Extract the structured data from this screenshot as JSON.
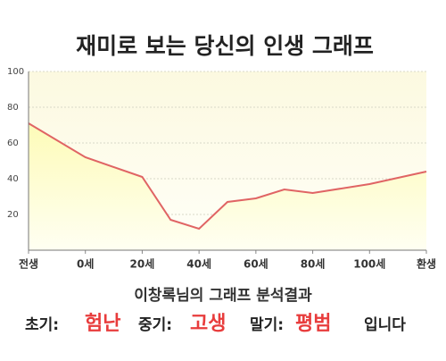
{
  "chart_data": {
    "type": "area",
    "title": "재미로 보는 당신의 인생 그래프",
    "x": [
      -20,
      0,
      20,
      30,
      40,
      50,
      60,
      70,
      80,
      100,
      120
    ],
    "values": [
      71,
      52,
      41,
      17,
      12,
      27,
      29,
      34,
      32,
      37,
      44
    ],
    "color": "#e06464",
    "fill": "#fdfbb8",
    "xlim": [
      -20,
      120
    ],
    "xticks": [
      {
        "value": -20,
        "label": "전생"
      },
      {
        "value": 0,
        "label": "0세"
      },
      {
        "value": 20,
        "label": "20세"
      },
      {
        "value": 40,
        "label": "40세"
      },
      {
        "value": 60,
        "label": "60세"
      },
      {
        "value": 80,
        "label": "80세"
      },
      {
        "value": 100,
        "label": "100세"
      },
      {
        "value": 120,
        "label": "환생"
      }
    ],
    "ylim": [
      0,
      100
    ],
    "yticks": [
      20,
      40,
      60,
      80,
      100
    ],
    "grid": true
  },
  "analysis": {
    "title": "이창록님의 그래프 분석결과",
    "items": [
      {
        "label": "초기:",
        "value": "험난"
      },
      {
        "label": "중기:",
        "value": "고생"
      },
      {
        "label": "말기:",
        "value": "평범"
      }
    ],
    "ending": "입니다"
  }
}
